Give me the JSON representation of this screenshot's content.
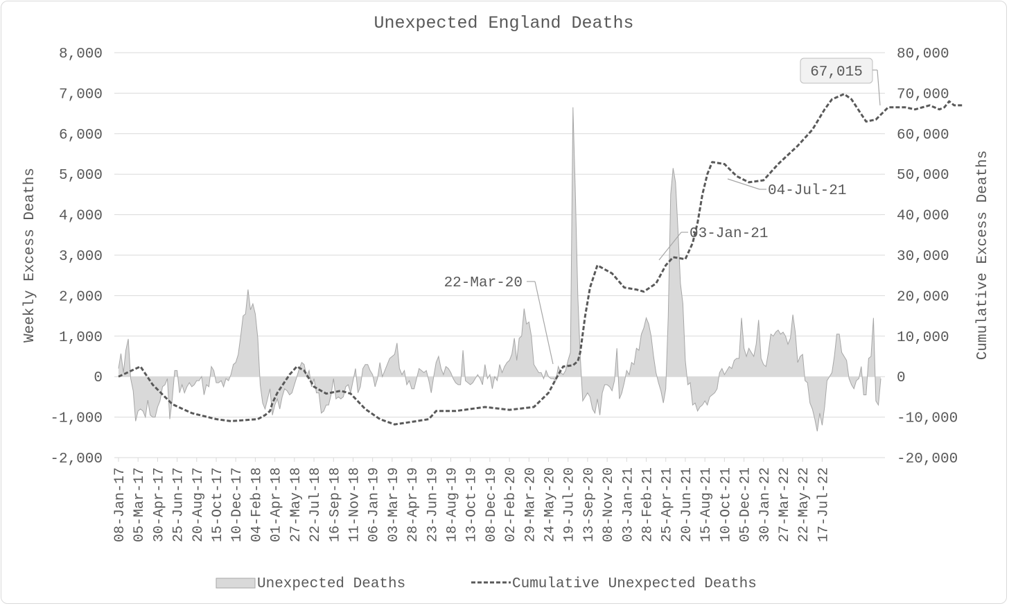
{
  "chart_data": {
    "type": "area",
    "title": "Unexpected England Deaths",
    "ylabel": "Weekly Excess Deaths",
    "y2label": "Cumulative Excess Deaths",
    "ylim": [
      -2000,
      8000
    ],
    "y2lim": [
      -20000,
      80000
    ],
    "yticks": [
      "-2,000",
      "-1,000",
      "0",
      "1,000",
      "2,000",
      "3,000",
      "4,000",
      "5,000",
      "6,000",
      "7,000",
      "8,000"
    ],
    "y2ticks": [
      "-20,000",
      "-10,000",
      "0",
      "10,000",
      "20,000",
      "30,000",
      "40,000",
      "50,000",
      "60,000",
      "70,000",
      "80,000"
    ],
    "xticks": [
      "08-Jan-17",
      "05-Mar-17",
      "30-Apr-17",
      "25-Jun-17",
      "20-Aug-17",
      "15-Oct-17",
      "10-Dec-17",
      "04-Feb-18",
      "01-Apr-18",
      "27-May-18",
      "22-Jul-18",
      "16-Sep-18",
      "11-Nov-18",
      "06-Jan-19",
      "03-Mar-19",
      "28-Apr-19",
      "23-Jun-19",
      "18-Aug-19",
      "13-Oct-19",
      "08-Dec-19",
      "02-Feb-20",
      "29-Mar-20",
      "24-May-20",
      "19-Jul-20",
      "13-Sep-20",
      "08-Nov-20",
      "03-Jan-21",
      "28-Feb-21",
      "25-Apr-21",
      "20-Jun-21",
      "15-Aug-21",
      "10-Oct-21",
      "05-Dec-21",
      "30-Jan-22",
      "27-Mar-22",
      "22-May-22",
      "17-Jul-22"
    ],
    "grid": true,
    "legend_position": "bottom",
    "series": [
      {
        "name": "Unexpected Deaths",
        "kind": "area",
        "axis": "left",
        "color": "#d9d9d9",
        "values": [
          200,
          570,
          100,
          650,
          930,
          -50,
          -350,
          -1100,
          -850,
          -800,
          -850,
          -1000,
          -580,
          -950,
          -1000,
          -1000,
          -750,
          -600,
          -250,
          -200,
          -50,
          -1050,
          -550,
          150,
          150,
          -400,
          -200,
          -400,
          -250,
          -150,
          -250,
          -200,
          -100,
          -100,
          0,
          -450,
          -200,
          -250,
          250,
          150,
          -150,
          -150,
          -100,
          -250,
          -50,
          -100,
          50,
          300,
          350,
          550,
          1000,
          1500,
          1550,
          2150,
          1650,
          1800,
          1550,
          950,
          -200,
          -650,
          -800,
          -550,
          -300,
          -950,
          -700,
          -550,
          -800,
          -500,
          -300,
          -350,
          -450,
          -400,
          -200,
          0,
          200,
          350,
          300,
          0,
          150,
          -250,
          -50,
          -400,
          -400,
          -900,
          -850,
          -700,
          -700,
          -450,
          -50,
          -550,
          -500,
          -550,
          -500,
          -250,
          -200,
          -400,
          -100,
          200,
          -400,
          -250,
          200,
          300,
          300,
          150,
          50,
          -250,
          -50,
          350,
          0,
          150,
          300,
          450,
          500,
          550,
          830,
          200,
          50,
          150,
          -200,
          -100,
          -300,
          -300,
          -50,
          200,
          150,
          100,
          150,
          -100,
          -400,
          0,
          350,
          500,
          200,
          50,
          250,
          200,
          100,
          -50,
          -150,
          -200,
          -200,
          650,
          -100,
          -150,
          -200,
          -150,
          -50,
          50,
          -50,
          -200,
          300,
          -50,
          50,
          -300,
          0,
          -100,
          300,
          100,
          250,
          350,
          400,
          550,
          950,
          400,
          950,
          1000,
          1680,
          1300,
          1350,
          1000,
          300,
          200,
          100,
          100,
          -50,
          150,
          0,
          -50,
          -50,
          -100,
          250,
          100,
          50,
          150,
          400,
          600,
          6650,
          4500,
          2000,
          500,
          -600,
          -500,
          -400,
          -500,
          -800,
          -900,
          -550,
          -950,
          -400,
          -200,
          -200,
          -250,
          -350,
          -100,
          700,
          -550,
          -400,
          -150,
          150,
          50,
          350,
          300,
          700,
          650,
          1050,
          1200,
          1450,
          1300,
          1000,
          500,
          100,
          -150,
          -350,
          -650,
          -300,
          1500,
          4500,
          5150,
          4800,
          3600,
          2300,
          1800,
          400,
          -200,
          -150,
          -700,
          -650,
          -850,
          -750,
          -700,
          -600,
          -700,
          -500,
          -450,
          -400,
          -300,
          100,
          200,
          50,
          150,
          250,
          200,
          400,
          450,
          450,
          1450,
          700,
          500,
          700,
          600,
          500,
          800,
          1400,
          450,
          300,
          250,
          600,
          1050,
          1000,
          1100,
          1150,
          1050,
          1100,
          1000,
          800,
          950,
          1530,
          1100,
          350,
          500,
          550,
          -100,
          -150,
          -650,
          -800,
          -1050,
          -1350,
          -900,
          -1200,
          -750,
          -100,
          0,
          100,
          500,
          1050,
          1050,
          600,
          500,
          400,
          -50,
          -200,
          -300,
          -100,
          -50,
          250,
          -450,
          -450,
          450,
          500,
          1450,
          -600,
          -700,
          -50
        ]
      },
      {
        "name": "Cumulative Unexpected Deaths",
        "kind": "line",
        "axis": "right",
        "color": "#595959",
        "points": [
          [
            0,
            0
          ],
          [
            9,
            2500
          ],
          [
            14,
            -2000
          ],
          [
            22,
            -6800
          ],
          [
            30,
            -9000
          ],
          [
            40,
            -10500
          ],
          [
            46,
            -11000
          ],
          [
            57,
            -10500
          ],
          [
            60,
            -9500
          ],
          [
            62,
            -8500
          ],
          [
            63,
            -6500
          ],
          [
            65,
            -4000
          ],
          [
            70,
            500
          ],
          [
            73,
            2500
          ],
          [
            76,
            1500
          ],
          [
            80,
            -2500
          ],
          [
            85,
            -4200
          ],
          [
            91,
            -3500
          ],
          [
            95,
            -4200
          ],
          [
            101,
            -8000
          ],
          [
            107,
            -10500
          ],
          [
            113,
            -11800
          ],
          [
            122,
            -11000
          ],
          [
            127,
            -10500
          ],
          [
            130,
            -8500
          ],
          [
            138,
            -8500
          ],
          [
            150,
            -7500
          ],
          [
            160,
            -8200
          ],
          [
            170,
            -7500
          ],
          [
            176,
            -4000
          ],
          [
            180,
            500
          ],
          [
            182,
            2500
          ],
          [
            186,
            2800
          ],
          [
            188,
            3800
          ],
          [
            189,
            6000
          ],
          [
            191,
            15000
          ],
          [
            193,
            22000
          ],
          [
            196,
            27500
          ],
          [
            202,
            25500
          ],
          [
            207,
            22000
          ],
          [
            212,
            21500
          ],
          [
            215,
            21000
          ],
          [
            220,
            23000
          ],
          [
            224,
            27500
          ],
          [
            227,
            29500
          ],
          [
            232,
            29000
          ],
          [
            235,
            33000
          ],
          [
            237,
            38000
          ],
          [
            239,
            45000
          ],
          [
            241,
            50000
          ],
          [
            243,
            53000
          ],
          [
            248,
            52500
          ],
          [
            253,
            49500
          ],
          [
            258,
            48000
          ],
          [
            264,
            48500
          ],
          [
            270,
            52500
          ],
          [
            278,
            57000
          ],
          [
            284,
            61000
          ],
          [
            289,
            66000
          ],
          [
            292,
            68500
          ],
          [
            297,
            69800
          ],
          [
            300,
            68500
          ],
          [
            306,
            63000
          ],
          [
            310,
            63500
          ],
          [
            315,
            66500
          ],
          [
            322,
            66500
          ],
          [
            326,
            66000
          ],
          [
            332,
            67000
          ],
          [
            336,
            66000
          ],
          [
            338,
            66500
          ],
          [
            340,
            68000
          ],
          [
            342,
            67000
          ],
          [
            346,
            67015
          ]
        ]
      }
    ],
    "annotations": [
      {
        "label": "22-Mar-20"
      },
      {
        "label": "03-Jan-21"
      },
      {
        "label": "04-Jul-21"
      },
      {
        "label": "67,015"
      }
    ]
  }
}
